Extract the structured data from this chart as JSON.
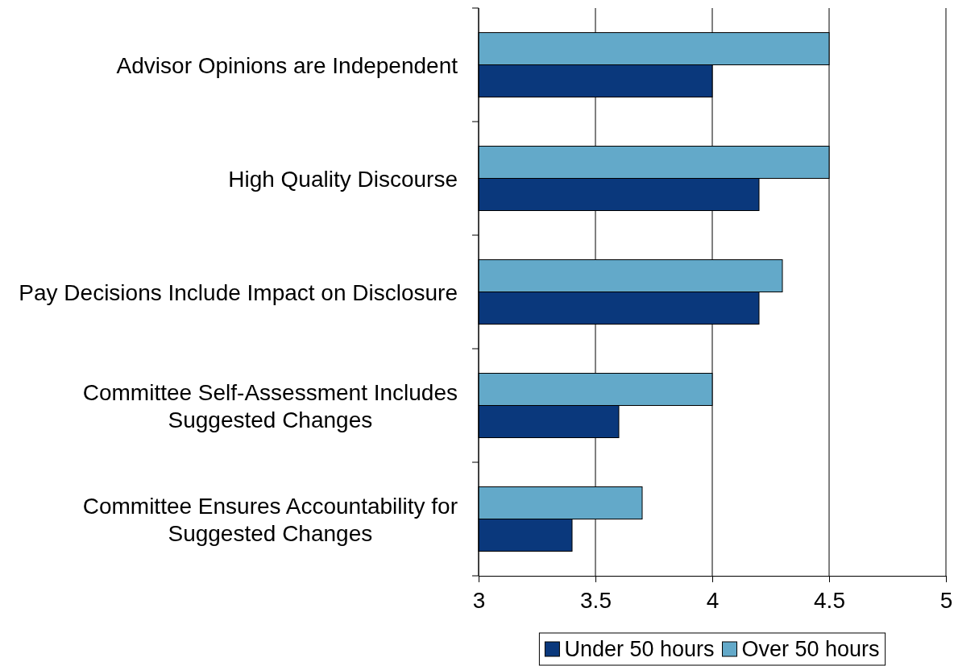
{
  "chart_data": {
    "type": "bar",
    "orientation": "horizontal",
    "categories": [
      "Advisor Opinions are Independent",
      "High Quality Discourse",
      "Pay Decisions Include Impact on Disclosure",
      "Committee Self-Assessment Includes Suggested Changes",
      "Committee Ensures Accountability for Suggested Changes"
    ],
    "series": [
      {
        "name": "Under 50 hours",
        "color": "#0a387c",
        "values": [
          4.0,
          4.2,
          4.2,
          3.6,
          3.4
        ]
      },
      {
        "name": "Over 50 hours",
        "color": "#63a9c9",
        "values": [
          4.5,
          4.5,
          4.3,
          4.0,
          3.7
        ]
      }
    ],
    "xlim": [
      3,
      5
    ],
    "xticks": [
      3,
      3.5,
      4,
      4.5,
      5
    ],
    "grid": "x",
    "legend": "bottom"
  }
}
